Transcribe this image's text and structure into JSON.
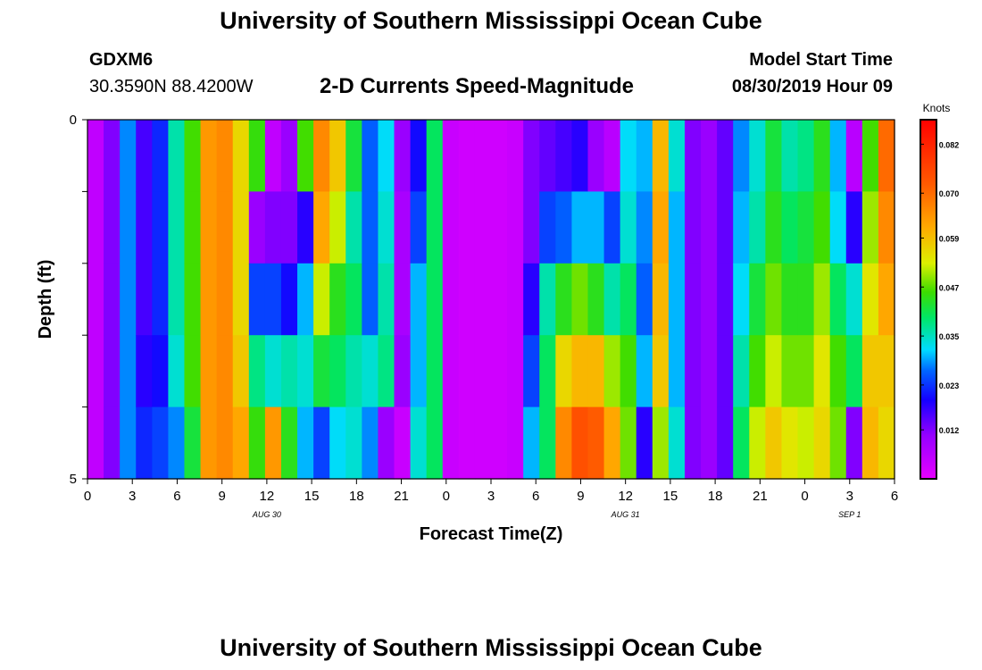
{
  "header": {
    "title_top": "University of Southern Mississippi Ocean Cube",
    "station_id": "GDXM6",
    "location": "30.3590N 88.4200W",
    "plot_title": "2-D Currents Speed-Magnitude",
    "model_start_label": "Model Start Time",
    "model_start_value": "08/30/2019 Hour 09",
    "title_bottom": "University of Southern Mississippi Ocean Cube"
  },
  "chart_data": {
    "type": "heatmap",
    "title": "2-D Currents Speed-Magnitude",
    "xlabel": "Forecast Time(Z)",
    "ylabel": "Depth (ft)",
    "ylim": [
      0,
      5
    ],
    "ytick_labels": [
      "0",
      "5"
    ],
    "xtick_labels": [
      "0",
      "3",
      "6",
      "9",
      "12",
      "15",
      "18",
      "21",
      "0",
      "3",
      "6",
      "9",
      "12",
      "15",
      "18",
      "21",
      "0",
      "3",
      "6"
    ],
    "date_labels": [
      {
        "text": "AUG 30",
        "hour": 12
      },
      {
        "text": "AUG 31",
        "hour": 36
      },
      {
        "text": "SEP 1",
        "hour": 51
      }
    ],
    "x_range_hours": [
      0,
      54
    ],
    "depth_rows": 5,
    "colorbar": {
      "unit_label": "Knots",
      "ticks": [
        "0.012",
        "0.023",
        "0.035",
        "0.047",
        "0.059",
        "0.070",
        "0.082"
      ],
      "range": [
        0.0,
        0.088
      ]
    },
    "speed_columns_knots": [
      [
        0.005,
        0.005,
        0.005,
        0.005,
        0.005
      ],
      [
        0.012,
        0.012,
        0.012,
        0.012,
        0.012
      ],
      [
        0.028,
        0.028,
        0.028,
        0.028,
        0.028
      ],
      [
        0.016,
        0.016,
        0.016,
        0.018,
        0.022
      ],
      [
        0.022,
        0.022,
        0.022,
        0.02,
        0.024
      ],
      [
        0.036,
        0.036,
        0.036,
        0.034,
        0.028
      ],
      [
        0.046,
        0.046,
        0.046,
        0.046,
        0.042
      ],
      [
        0.064,
        0.064,
        0.064,
        0.064,
        0.064
      ],
      [
        0.066,
        0.066,
        0.066,
        0.066,
        0.066
      ],
      [
        0.056,
        0.056,
        0.056,
        0.058,
        0.062
      ],
      [
        0.045,
        0.01,
        0.024,
        0.038,
        0.045
      ],
      [
        0.005,
        0.012,
        0.024,
        0.034,
        0.064
      ],
      [
        0.01,
        0.012,
        0.02,
        0.036,
        0.044
      ],
      [
        0.046,
        0.018,
        0.03,
        0.034,
        0.03
      ],
      [
        0.066,
        0.062,
        0.052,
        0.042,
        0.024
      ],
      [
        0.058,
        0.052,
        0.044,
        0.04,
        0.032
      ],
      [
        0.042,
        0.036,
        0.04,
        0.036,
        0.034
      ],
      [
        0.026,
        0.026,
        0.026,
        0.034,
        0.028
      ],
      [
        0.032,
        0.034,
        0.036,
        0.038,
        0.01
      ],
      [
        0.01,
        0.008,
        0.008,
        0.01,
        0.004
      ],
      [
        0.02,
        0.024,
        0.03,
        0.03,
        0.034
      ],
      [
        0.04,
        0.04,
        0.04,
        0.04,
        0.04
      ],
      [
        0.004,
        0.004,
        0.004,
        0.004,
        0.004
      ],
      [
        0.003,
        0.003,
        0.003,
        0.003,
        0.003
      ],
      [
        0.003,
        0.003,
        0.003,
        0.003,
        0.003
      ],
      [
        0.003,
        0.003,
        0.003,
        0.003,
        0.003
      ],
      [
        0.004,
        0.004,
        0.004,
        0.004,
        0.004
      ],
      [
        0.012,
        0.012,
        0.018,
        0.024,
        0.03
      ],
      [
        0.014,
        0.024,
        0.036,
        0.04,
        0.04
      ],
      [
        0.016,
        0.026,
        0.044,
        0.056,
        0.066
      ],
      [
        0.018,
        0.03,
        0.048,
        0.06,
        0.074
      ],
      [
        0.01,
        0.03,
        0.044,
        0.06,
        0.072
      ],
      [
        0.006,
        0.024,
        0.036,
        0.05,
        0.062
      ],
      [
        0.032,
        0.034,
        0.04,
        0.046,
        0.048
      ],
      [
        0.03,
        0.028,
        0.026,
        0.03,
        0.018
      ],
      [
        0.06,
        0.062,
        0.06,
        0.058,
        0.05
      ],
      [
        0.034,
        0.03,
        0.03,
        0.03,
        0.034
      ],
      [
        0.012,
        0.012,
        0.012,
        0.012,
        0.012
      ],
      [
        0.01,
        0.01,
        0.01,
        0.01,
        0.01
      ],
      [
        0.014,
        0.014,
        0.014,
        0.014,
        0.014
      ],
      [
        0.028,
        0.03,
        0.032,
        0.036,
        0.04
      ],
      [
        0.034,
        0.036,
        0.042,
        0.046,
        0.052
      ],
      [
        0.042,
        0.044,
        0.048,
        0.052,
        0.058
      ],
      [
        0.036,
        0.04,
        0.044,
        0.048,
        0.054
      ],
      [
        0.038,
        0.042,
        0.044,
        0.048,
        0.052
      ],
      [
        0.044,
        0.046,
        0.05,
        0.054,
        0.056
      ],
      [
        0.03,
        0.032,
        0.04,
        0.046,
        0.048
      ],
      [
        0.006,
        0.018,
        0.034,
        0.04,
        0.012
      ],
      [
        0.046,
        0.05,
        0.054,
        0.058,
        0.06
      ],
      [
        0.07,
        0.066,
        0.062,
        0.058,
        0.056
      ]
    ]
  }
}
